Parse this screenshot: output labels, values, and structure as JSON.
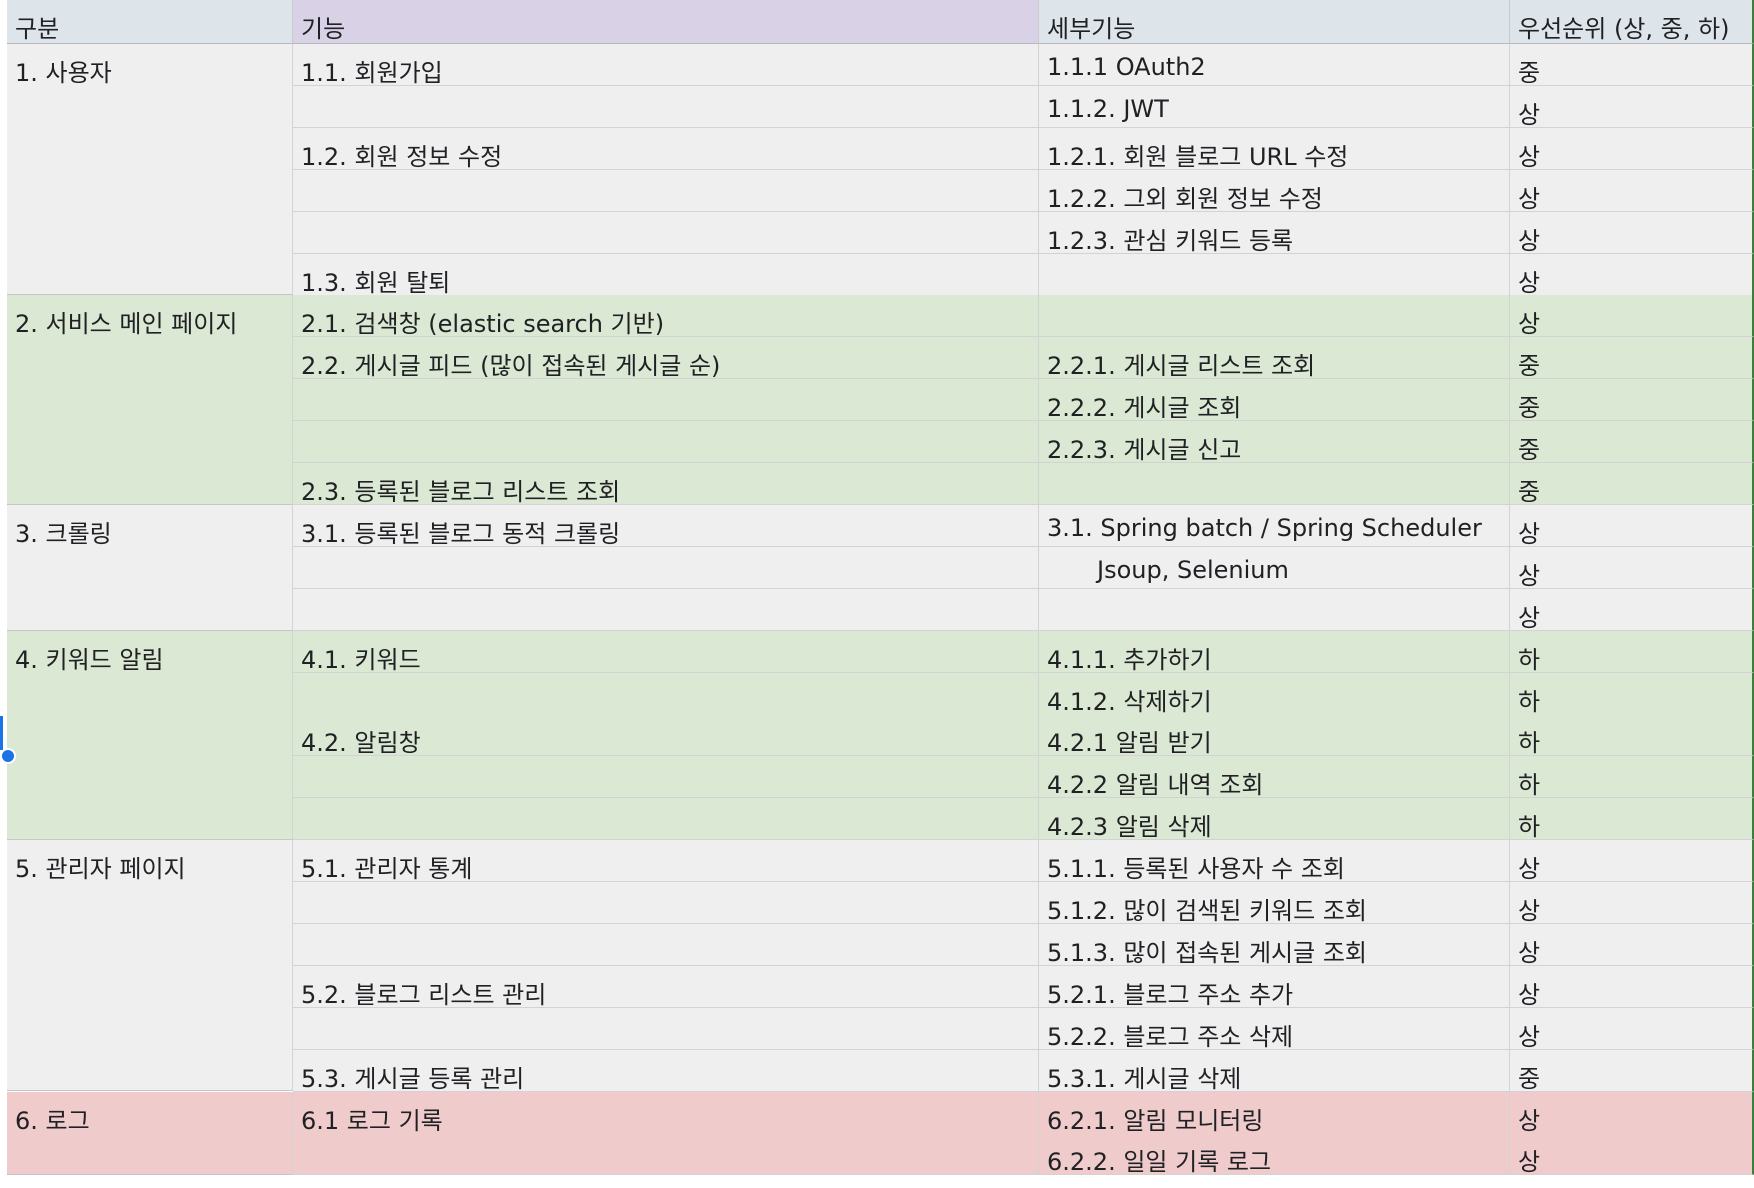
{
  "headers": {
    "category": "구분",
    "feature": "기능",
    "detail": "세부기능",
    "priority": "우선순위 (상, 중, 하)"
  },
  "colors": {
    "header_a": "#dde4ea",
    "header_b": "#d9d2e6",
    "header_c": "#dde4ea",
    "header_d": "#dde4ea",
    "gray_row": "#efefef",
    "green_row": "#dbe8d3",
    "red_row": "#efcbcb",
    "selection": "#1a73e8",
    "column_border": "#3b7f3a"
  },
  "groups": [
    {
      "category": "1. 사용자",
      "tone": "gray",
      "rows": [
        {
          "feature": "1.1. 회원가입",
          "detail": "1.1.1 OAuth2",
          "priority": "중"
        },
        {
          "feature": "",
          "detail": "1.1.2. JWT",
          "priority": "상"
        },
        {
          "feature": "1.2. 회원 정보 수정",
          "detail": "1.2.1. 회원 블로그 URL 수정",
          "priority": "상"
        },
        {
          "feature": "",
          "detail": "1.2.2. 그외 회원 정보 수정",
          "priority": "상"
        },
        {
          "feature": "",
          "detail": "1.2.3. 관심 키워드 등록",
          "priority": "상"
        },
        {
          "feature": "1.3. 회원 탈퇴",
          "detail": "",
          "priority": "상"
        }
      ]
    },
    {
      "category": "2. 서비스 메인 페이지",
      "tone": "green",
      "rows": [
        {
          "feature": "2.1. 검색창 (elastic search 기반)",
          "detail": "",
          "priority": "상"
        },
        {
          "feature": "2.2. 게시글 피드 (많이 접속된 게시글 순)",
          "detail": "2.2.1. 게시글 리스트 조회",
          "priority": "중"
        },
        {
          "feature": "",
          "detail": "2.2.2. 게시글 조회",
          "priority": "중"
        },
        {
          "feature": "",
          "detail": "2.2.3. 게시글 신고",
          "priority": "중"
        },
        {
          "feature": "2.3. 등록된 블로그 리스트 조회",
          "detail": "",
          "priority": "중"
        }
      ]
    },
    {
      "category": "3. 크롤링",
      "tone": "gray",
      "rows": [
        {
          "feature": "3.1. 등록된 블로그 동적 크롤링",
          "detail": "3.1. Spring batch / Spring Scheduler",
          "priority": "상"
        },
        {
          "feature": "",
          "detail": "Jsoup, Selenium",
          "priority": "상",
          "indent": true
        },
        {
          "feature": "",
          "detail": "",
          "priority": "상"
        }
      ]
    },
    {
      "category": "4. 키워드 알림",
      "tone": "green",
      "rows": [
        {
          "feature": "4.1. 키워드",
          "detail": "4.1.1. 추가하기",
          "priority": "하"
        },
        {
          "feature": "",
          "detail": "4.1.2. 삭제하기",
          "priority": "하"
        },
        {
          "feature": "4.2. 알림창",
          "detail": "4.2.1 알림 받기",
          "priority": "하"
        },
        {
          "feature": "",
          "detail": "4.2.2 알림 내역 조회",
          "priority": "하"
        },
        {
          "feature": "",
          "detail": "4.2.3 알림 삭제",
          "priority": "하"
        }
      ]
    },
    {
      "category": "5. 관리자 페이지",
      "tone": "gray",
      "rows": [
        {
          "feature": "5.1. 관리자 통계",
          "detail": "5.1.1. 등록된 사용자 수 조회",
          "priority": "상"
        },
        {
          "feature": "",
          "detail": "5.1.2. 많이 검색된 키워드 조회",
          "priority": "상"
        },
        {
          "feature": "",
          "detail": "5.1.3. 많이 접속된 게시글 조회",
          "priority": "상"
        },
        {
          "feature": "5.2. 블로그 리스트 관리",
          "detail": "5.2.1. 블로그 주소 추가",
          "priority": "상"
        },
        {
          "feature": "",
          "detail": "5.2.2. 블로그 주소 삭제",
          "priority": "상"
        },
        {
          "feature": "5.3. 게시글 등록 관리",
          "detail": "5.3.1. 게시글 삭제",
          "priority": "중"
        }
      ]
    },
    {
      "category": "6. 로그",
      "tone": "red",
      "rows": [
        {
          "feature": "6.1 로그 기록",
          "detail": "6.2.1. 알림 모니터링",
          "priority": "상"
        },
        {
          "feature": "",
          "detail": "6.2.2. 일일 기록 로그",
          "priority": "상"
        }
      ]
    }
  ]
}
